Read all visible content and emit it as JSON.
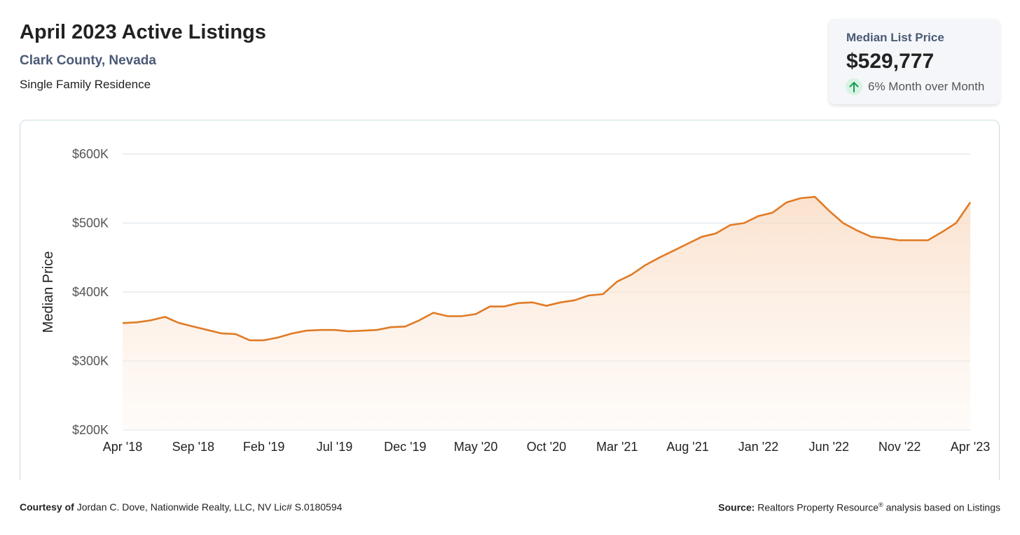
{
  "header": {
    "title": "April 2023 Active Listings",
    "location": "Clark County, Nevada",
    "property_type": "Single Family Residence"
  },
  "stat_card": {
    "label": "Median List Price",
    "value": "$529,777",
    "change": "6% Month over Month",
    "change_icon": "arrow-up-icon",
    "change_color": "#1a9a55"
  },
  "colors": {
    "line": "#e07b26",
    "area_top": "#f9d8bd",
    "grid": "#d9e2e8"
  },
  "chart_data": {
    "type": "area",
    "ylabel": "Median Price",
    "xlabel": "",
    "ylim": [
      200000,
      600000
    ],
    "y_ticks": [
      200000,
      300000,
      400000,
      500000,
      600000
    ],
    "y_tick_labels": [
      "$200K",
      "$300K",
      "$400K",
      "$500K",
      "$600K"
    ],
    "x_tick_labels": [
      "Apr '18",
      "Sep '18",
      "Feb '19",
      "Jul '19",
      "Dec '19",
      "May '20",
      "Oct '20",
      "Mar '21",
      "Aug '21",
      "Jan '22",
      "Jun '22",
      "Nov '22",
      "Apr '23"
    ],
    "x_tick_step": 5,
    "grid": true,
    "series": [
      {
        "values": [
          355000,
          356000,
          359000,
          364000,
          355000,
          350000,
          345000,
          340000,
          339000,
          330000,
          330000,
          334000,
          340000,
          344000,
          345000,
          345000,
          343000,
          344000,
          345000,
          349000,
          350000,
          359000,
          370000,
          365000,
          365000,
          368000,
          379000,
          379000,
          384000,
          385000,
          380000,
          385000,
          388000,
          395000,
          397000,
          415000,
          425000,
          439000,
          450000,
          460000,
          470000,
          480000,
          485000,
          497000,
          500000,
          510000,
          515000,
          530000,
          536000,
          538000,
          518000,
          500000,
          489000,
          480000,
          478000,
          475000,
          475000,
          475000,
          487000,
          500000,
          530000
        ]
      }
    ]
  },
  "footer": {
    "courtesy_label": "Courtesy of",
    "courtesy_text": "Jordan C. Dove, Nationwide Realty, LLC, NV Lic# S.0180594",
    "source_label": "Source:",
    "source_text_1": "Realtors Property Resource",
    "source_sup": "®",
    "source_text_2": "analysis based on Listings"
  }
}
